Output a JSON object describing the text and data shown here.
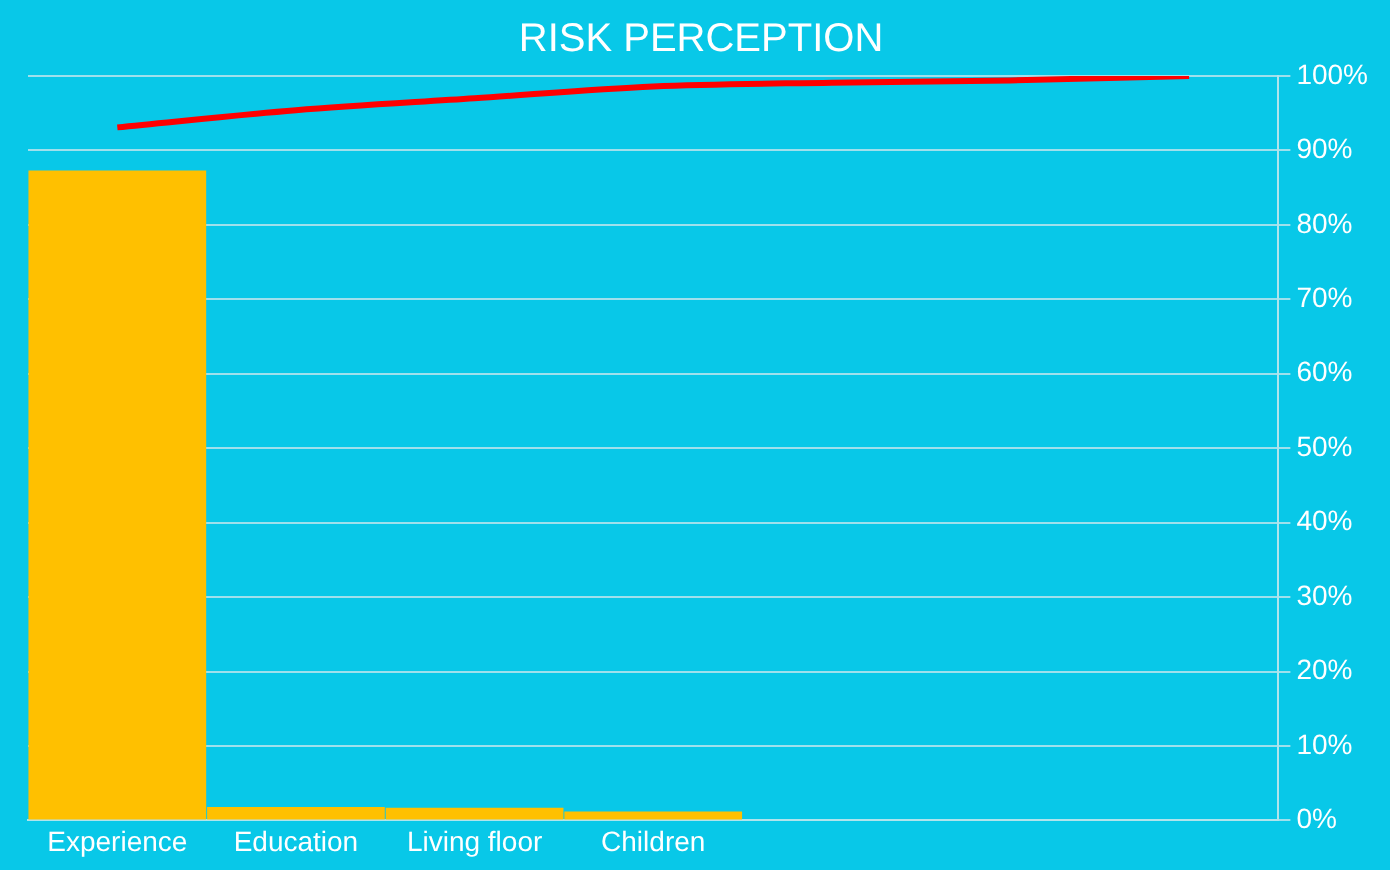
{
  "chart_data": {
    "type": "bar",
    "title": "RISK PERCEPTION",
    "categories": [
      "Experience",
      "Education",
      "Living floor",
      "Children",
      null,
      null,
      null
    ],
    "series": [
      {
        "color": "#ffc000",
        "values": [
          87.3,
          1.8,
          1.7,
          1.2,
          0,
          0,
          0
        ]
      },
      {
        "type": "line",
        "color": "#ff0000",
        "values": [
          93.1,
          95.4,
          97.0,
          98.6,
          99.1,
          99.4,
          100
        ]
      }
    ],
    "ylim": [
      0,
      100
    ],
    "yticks": [
      {
        "value": 0,
        "label": "0%"
      },
      {
        "value": 10,
        "label": "10%"
      },
      {
        "value": 20,
        "label": "20%"
      },
      {
        "value": 30,
        "label": "30%"
      },
      {
        "value": 40,
        "label": "40%"
      },
      {
        "value": 50,
        "label": "50%"
      },
      {
        "value": 60,
        "label": "60%"
      },
      {
        "value": 70,
        "label": "70%"
      },
      {
        "value": 80,
        "label": "80%"
      },
      {
        "value": 90,
        "label": "90%"
      },
      {
        "value": 100,
        "label": "100%"
      }
    ],
    "grid": "y",
    "legend": false,
    "marker": "none",
    "line_style": "solid"
  }
}
